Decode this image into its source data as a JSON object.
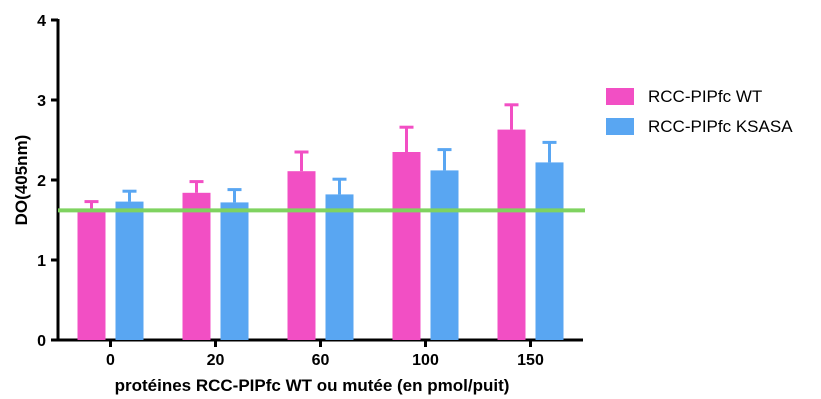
{
  "chart_data": {
    "type": "bar",
    "title": "",
    "xlabel": "protéines RCC-PIPfc WT ou mutée (en pmol/puit)",
    "ylabel": "DO(405nm)",
    "categories": [
      "0",
      "20",
      "60",
      "100",
      "150"
    ],
    "ylim": [
      0,
      4
    ],
    "yticks": [
      "0",
      "1",
      "2",
      "3",
      "4"
    ],
    "series": [
      {
        "name": "RCC-PIPfc WT",
        "color": "#f24fc4",
        "values": [
          1.63,
          1.84,
          2.11,
          2.35,
          2.63
        ],
        "errors": [
          0.1,
          0.14,
          0.24,
          0.31,
          0.31
        ]
      },
      {
        "name": "RCC-PIPfc KSASA",
        "color": "#59a6f2",
        "values": [
          1.73,
          1.72,
          1.82,
          2.12,
          2.22
        ],
        "errors": [
          0.13,
          0.16,
          0.19,
          0.26,
          0.25
        ]
      }
    ],
    "reference_line": {
      "value": 1.62,
      "color": "#7fd360"
    },
    "legend_position": "right",
    "grid": false
  }
}
